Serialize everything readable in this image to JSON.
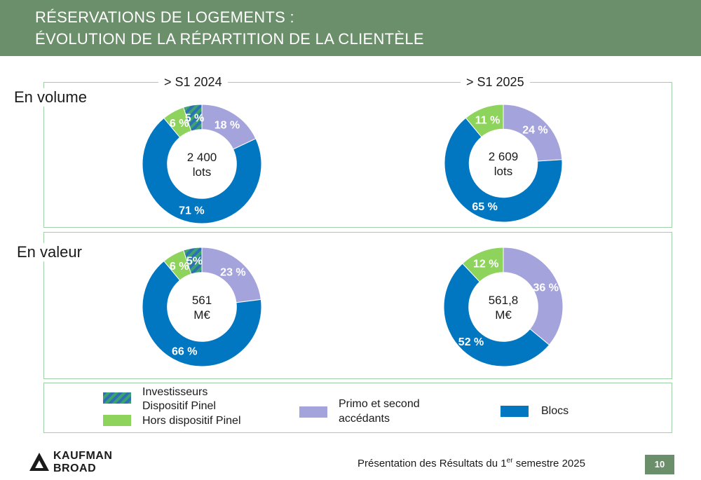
{
  "header": {
    "title_line1": "RÉSERVATIONS DE LOGEMENTS :",
    "title_line2": "ÉVOLUTION DE LA RÉPARTITION DE LA CLIENTÈLE"
  },
  "periods": [
    "> S1 2024",
    "> S1 2025"
  ],
  "rows": [
    "En volume",
    "En valeur"
  ],
  "colors": {
    "primo": "#a5a3dc",
    "blocs": "#0077c0",
    "hors_pinel": "#8ed35b",
    "investisseurs_pinel_a": "#3aa36e",
    "investisseurs_pinel_b": "#2f6fb6",
    "header": "#6b8f6b",
    "border": "#9fd0a8"
  },
  "chart_data": [
    {
      "type": "pie",
      "row": "En volume",
      "period": "> S1 2024",
      "center": [
        "2 400",
        "lots"
      ],
      "slices": [
        {
          "category": "Primo et second accédants",
          "value": 18,
          "label": "18 %"
        },
        {
          "category": "Blocs",
          "value": 71,
          "label": "71 %"
        },
        {
          "category": "Hors dispositif Pinel",
          "value": 6,
          "label": "6 %"
        },
        {
          "category": "Investisseurs Dispositif Pinel",
          "value": 5,
          "label": "5 %"
        }
      ]
    },
    {
      "type": "pie",
      "row": "En volume",
      "period": "> S1 2025",
      "center": [
        "2 609",
        "lots"
      ],
      "slices": [
        {
          "category": "Primo et second accédants",
          "value": 24,
          "label": "24 %"
        },
        {
          "category": "Blocs",
          "value": 65,
          "label": "65 %"
        },
        {
          "category": "Hors dispositif Pinel",
          "value": 11,
          "label": "11 %"
        }
      ]
    },
    {
      "type": "pie",
      "row": "En valeur",
      "period": "> S1 2024",
      "center": [
        "561",
        "M€"
      ],
      "slices": [
        {
          "category": "Primo et second accédants",
          "value": 23,
          "label": "23 %"
        },
        {
          "category": "Blocs",
          "value": 66,
          "label": "66 %"
        },
        {
          "category": "Hors dispositif Pinel",
          "value": 6,
          "label": "6 %"
        },
        {
          "category": "Investisseurs Dispositif Pinel",
          "value": 5,
          "label": "5%"
        }
      ]
    },
    {
      "type": "pie",
      "row": "En valeur",
      "period": "> S1 2025",
      "center": [
        "561,8",
        "M€"
      ],
      "slices": [
        {
          "category": "Primo et second accédants",
          "value": 36,
          "label": "36 %"
        },
        {
          "category": "Blocs",
          "value": 52,
          "label": "52 %"
        },
        {
          "category": "Hors dispositif Pinel",
          "value": 12,
          "label": "12 %"
        }
      ]
    }
  ],
  "legend": {
    "investisseurs_line1": "Investisseurs",
    "investisseurs_line2": "Dispositif Pinel",
    "hors_pinel": "Hors dispositif Pinel",
    "primo_line1": "Primo et second",
    "primo_line2": "accédants",
    "blocs": "Blocs"
  },
  "footer": {
    "text_before": "Présentation des Résultats du 1",
    "superscript": "er",
    "text_after": " semestre 2025",
    "page": "10",
    "logo_line1": "KAUFMAN",
    "logo_line2": "BROAD"
  }
}
